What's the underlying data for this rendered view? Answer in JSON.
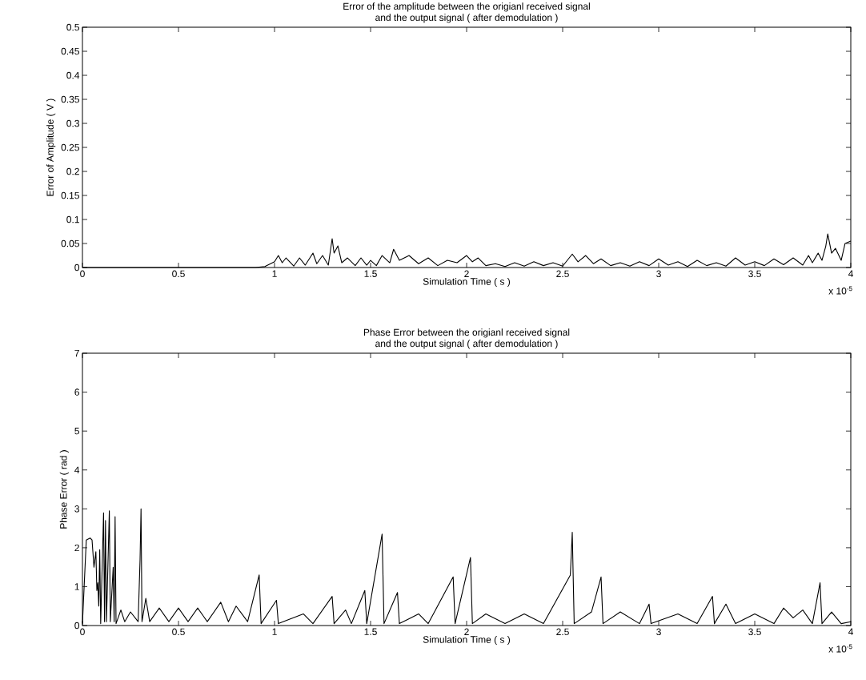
{
  "chart_data": [
    {
      "type": "line",
      "title": "Error of the amplitude between the origianl received signal\nand the output signal ( after demodulation )",
      "xlabel": "Simulation Time ( s )",
      "ylabel": "Error of Amplitude ( V )",
      "annotations": [
        "x 10$^{-5}$"
      ],
      "xlim": [
        0,
        4
      ],
      "ylim": [
        0,
        0.5
      ],
      "xticks": [
        0,
        0.5,
        1,
        1.5,
        2,
        2.5,
        3,
        3.5,
        4
      ],
      "yticks": [
        0,
        0.05,
        0.1,
        0.15,
        0.2,
        0.25,
        0.3,
        0.35,
        0.4,
        0.45,
        0.5
      ],
      "marker": "none",
      "line_style": "solid",
      "series": [
        {
          "color": "#000000",
          "x": [
            0,
            0.9,
            0.95,
            1.0,
            1.02,
            1.04,
            1.06,
            1.1,
            1.13,
            1.16,
            1.2,
            1.22,
            1.25,
            1.28,
            1.3,
            1.31,
            1.33,
            1.35,
            1.38,
            1.42,
            1.45,
            1.48,
            1.5,
            1.53,
            1.56,
            1.6,
            1.62,
            1.65,
            1.7,
            1.75,
            1.8,
            1.85,
            1.9,
            1.95,
            2.0,
            2.03,
            2.06,
            2.1,
            2.15,
            2.2,
            2.25,
            2.3,
            2.35,
            2.4,
            2.45,
            2.5,
            2.55,
            2.58,
            2.62,
            2.66,
            2.7,
            2.75,
            2.8,
            2.85,
            2.9,
            2.95,
            3.0,
            3.05,
            3.1,
            3.15,
            3.2,
            3.25,
            3.3,
            3.35,
            3.4,
            3.45,
            3.5,
            3.55,
            3.6,
            3.65,
            3.7,
            3.75,
            3.78,
            3.8,
            3.83,
            3.85,
            3.87,
            3.88,
            3.9,
            3.92,
            3.95,
            3.97,
            4.0
          ],
          "values": [
            0,
            0,
            0.002,
            0.012,
            0.025,
            0.01,
            0.02,
            0.003,
            0.02,
            0.005,
            0.03,
            0.008,
            0.025,
            0.005,
            0.06,
            0.03,
            0.045,
            0.01,
            0.02,
            0.004,
            0.02,
            0.005,
            0.015,
            0.004,
            0.025,
            0.01,
            0.038,
            0.015,
            0.025,
            0.008,
            0.02,
            0.004,
            0.015,
            0.01,
            0.025,
            0.012,
            0.02,
            0.004,
            0.008,
            0.002,
            0.01,
            0.003,
            0.012,
            0.004,
            0.01,
            0.003,
            0.028,
            0.012,
            0.025,
            0.008,
            0.018,
            0.004,
            0.01,
            0.003,
            0.012,
            0.004,
            0.018,
            0.005,
            0.012,
            0.002,
            0.015,
            0.004,
            0.01,
            0.003,
            0.02,
            0.005,
            0.012,
            0.004,
            0.018,
            0.006,
            0.02,
            0.005,
            0.025,
            0.01,
            0.03,
            0.015,
            0.045,
            0.07,
            0.03,
            0.04,
            0.015,
            0.05,
            0.055
          ]
        }
      ]
    },
    {
      "type": "line",
      "title": "Phase Error between the origianl received signal\nand the output signal ( after demodulation )",
      "xlabel": "Simulation Time ( s )",
      "ylabel": "Phase Error ( rad )",
      "annotations": [
        "x 10$^{-5}$"
      ],
      "xlim": [
        0,
        4
      ],
      "ylim": [
        0,
        7
      ],
      "xticks": [
        0,
        0.5,
        1,
        1.5,
        2,
        2.5,
        3,
        3.5,
        4
      ],
      "yticks": [
        0,
        1,
        2,
        3,
        4,
        5,
        6,
        7
      ],
      "marker": "none",
      "line_style": "solid",
      "series": [
        {
          "color": "#000000",
          "x": [
            0,
            0.02,
            0.04,
            0.05,
            0.06,
            0.07,
            0.075,
            0.08,
            0.085,
            0.09,
            0.095,
            0.11,
            0.115,
            0.12,
            0.125,
            0.14,
            0.145,
            0.16,
            0.165,
            0.17,
            0.175,
            0.2,
            0.22,
            0.25,
            0.29,
            0.3,
            0.305,
            0.31,
            0.33,
            0.35,
            0.4,
            0.45,
            0.5,
            0.55,
            0.6,
            0.65,
            0.72,
            0.76,
            0.8,
            0.86,
            0.92,
            0.93,
            1.01,
            1.02,
            1.15,
            1.2,
            1.3,
            1.31,
            1.37,
            1.4,
            1.47,
            1.48,
            1.56,
            1.57,
            1.64,
            1.65,
            1.75,
            1.8,
            1.93,
            1.94,
            2.02,
            2.03,
            2.1,
            2.2,
            2.3,
            2.4,
            2.54,
            2.55,
            2.56,
            2.65,
            2.7,
            2.71,
            2.8,
            2.9,
            2.95,
            2.96,
            3.1,
            3.2,
            3.28,
            3.29,
            3.35,
            3.4,
            3.5,
            3.6,
            3.65,
            3.7,
            3.75,
            3.8,
            3.84,
            3.85,
            3.9,
            3.95,
            4.0
          ],
          "values": [
            0.05,
            2.2,
            2.25,
            2.2,
            1.5,
            1.9,
            0.9,
            1.1,
            0.5,
            1.95,
            0.05,
            2.9,
            0.1,
            2.7,
            0.1,
            2.95,
            0.1,
            1.5,
            0.1,
            2.8,
            0.05,
            0.4,
            0.1,
            0.35,
            0.1,
            1.7,
            3.0,
            0.1,
            0.7,
            0.1,
            0.45,
            0.1,
            0.45,
            0.1,
            0.45,
            0.1,
            0.6,
            0.1,
            0.5,
            0.1,
            1.3,
            0.05,
            0.65,
            0.05,
            0.3,
            0.05,
            0.75,
            0.05,
            0.4,
            0.05,
            0.9,
            0.05,
            2.35,
            0.05,
            0.85,
            0.05,
            0.3,
            0.05,
            1.25,
            0.05,
            1.75,
            0.05,
            0.3,
            0.05,
            0.3,
            0.05,
            1.3,
            2.4,
            0.05,
            0.35,
            1.25,
            0.05,
            0.35,
            0.05,
            0.55,
            0.05,
            0.3,
            0.05,
            0.75,
            0.05,
            0.55,
            0.05,
            0.3,
            0.05,
            0.45,
            0.2,
            0.4,
            0.05,
            1.1,
            0.05,
            0.35,
            0.05,
            0.1
          ]
        }
      ]
    }
  ]
}
